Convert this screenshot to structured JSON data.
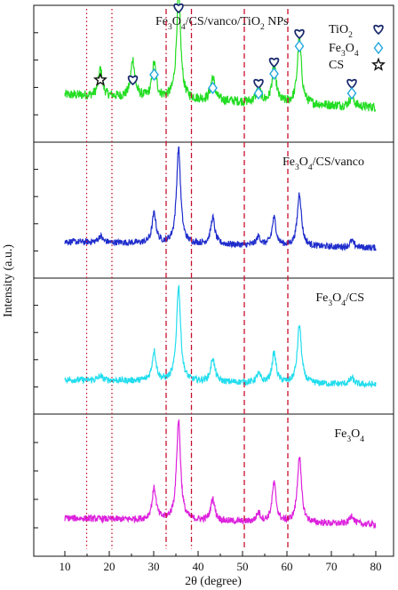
{
  "chart_data": {
    "type": "line",
    "xlabel": "2θ (degree)",
    "ylabel": "Intensity (a.u.)",
    "xlim": [
      3,
      84
    ],
    "xticks": [
      10,
      20,
      30,
      40,
      50,
      60,
      70,
      80
    ],
    "grid": false,
    "reference_lines": [
      {
        "x": 14.9,
        "style": "dotted",
        "color": "#c8102e"
      },
      {
        "x": 20.6,
        "style": "dotted",
        "color": "#c8102e"
      },
      {
        "x": 32.8,
        "style": "dashdot",
        "color": "#c8102e"
      },
      {
        "x": 38.5,
        "style": "dashdot",
        "color": "#c8102e"
      },
      {
        "x": 50.4,
        "style": "dashed",
        "color": "#c8102e"
      },
      {
        "x": 60.2,
        "style": "dashed",
        "color": "#c8102e"
      }
    ],
    "panels": [
      {
        "name": "Fe3O4/CS/vanco/TiO2 NPs",
        "label_parts": [
          [
            "Fe"
          ],
          [
            "3",
            "sub"
          ],
          [
            "O"
          ],
          [
            "4",
            "sub"
          ],
          [
            "/CS/vanco/TiO"
          ],
          [
            "2",
            "sub"
          ],
          [
            " NPs"
          ]
        ],
        "color": "#22dd22",
        "baseline": 0.2,
        "peaks": [
          [
            18.0,
            0.25
          ],
          [
            25.3,
            0.35
          ],
          [
            30.1,
            0.32
          ],
          [
            35.6,
            1.0
          ],
          [
            43.3,
            0.22
          ],
          [
            53.6,
            0.14
          ],
          [
            57.1,
            0.35
          ],
          [
            62.8,
            0.62
          ],
          [
            74.6,
            0.1
          ]
        ]
      },
      {
        "name": "Fe3O4/CS/vanco",
        "label_parts": [
          [
            "Fe"
          ],
          [
            "3",
            "sub"
          ],
          [
            "O"
          ],
          [
            "4",
            "sub"
          ],
          [
            "/CS/vanco"
          ]
        ],
        "color": "#1f2dcc",
        "baseline": 0.1,
        "peaks": [
          [
            18.0,
            0.06
          ],
          [
            30.1,
            0.28
          ],
          [
            35.6,
            0.9
          ],
          [
            43.3,
            0.25
          ],
          [
            53.6,
            0.08
          ],
          [
            57.1,
            0.26
          ],
          [
            62.8,
            0.5
          ],
          [
            74.6,
            0.06
          ]
        ]
      },
      {
        "name": "Fe3O4/CS",
        "label_parts": [
          [
            "Fe"
          ],
          [
            "3",
            "sub"
          ],
          [
            "O"
          ],
          [
            "4",
            "sub"
          ],
          [
            "/CS"
          ]
        ],
        "color": "#22ddee",
        "baseline": 0.08,
        "peaks": [
          [
            18.0,
            0.04
          ],
          [
            30.1,
            0.28
          ],
          [
            35.6,
            0.9
          ],
          [
            43.3,
            0.22
          ],
          [
            53.6,
            0.08
          ],
          [
            57.1,
            0.28
          ],
          [
            62.8,
            0.55
          ],
          [
            74.6,
            0.06
          ]
        ]
      },
      {
        "name": "Fe3O4",
        "label_parts": [
          [
            "Fe"
          ],
          [
            "3",
            "sub"
          ],
          [
            "O"
          ],
          [
            "4",
            "sub"
          ]
        ],
        "color": "#dd22dd",
        "baseline": 0.1,
        "peaks": [
          [
            30.1,
            0.28
          ],
          [
            35.6,
            0.9
          ],
          [
            43.3,
            0.2
          ],
          [
            53.6,
            0.08
          ],
          [
            57.1,
            0.35
          ],
          [
            62.8,
            0.6
          ],
          [
            74.6,
            0.08
          ]
        ]
      }
    ],
    "legend": {
      "placement": "top-right (top panel)",
      "entries": [
        {
          "label_parts": [
            [
              "TiO"
            ],
            [
              "2",
              "sub"
            ]
          ],
          "marker": "heart",
          "color": "#1a2a6c"
        },
        {
          "label_parts": [
            [
              "Fe"
            ],
            [
              "3",
              "sub"
            ],
            [
              "O"
            ],
            [
              "4",
              "sub"
            ]
          ],
          "marker": "diamond",
          "color": "#1fa5e0"
        },
        {
          "label_parts": [
            [
              "CS"
            ]
          ],
          "marker": "star",
          "color": "#111111"
        }
      ]
    },
    "peak_markers": [
      {
        "x": 18.0,
        "marker": "star"
      },
      {
        "x": 25.3,
        "marker": "heart"
      },
      {
        "x": 30.1,
        "marker": "diamond"
      },
      {
        "x": 35.6,
        "marker": "heart"
      },
      {
        "x": 43.3,
        "marker": "diamond"
      },
      {
        "x": 53.6,
        "marker": "heart"
      },
      {
        "x": 53.6,
        "marker": "diamond"
      },
      {
        "x": 57.1,
        "marker": "heart"
      },
      {
        "x": 57.1,
        "marker": "diamond"
      },
      {
        "x": 62.8,
        "marker": "heart"
      },
      {
        "x": 62.8,
        "marker": "diamond"
      },
      {
        "x": 74.6,
        "marker": "heart"
      },
      {
        "x": 74.6,
        "marker": "diamond"
      }
    ]
  }
}
